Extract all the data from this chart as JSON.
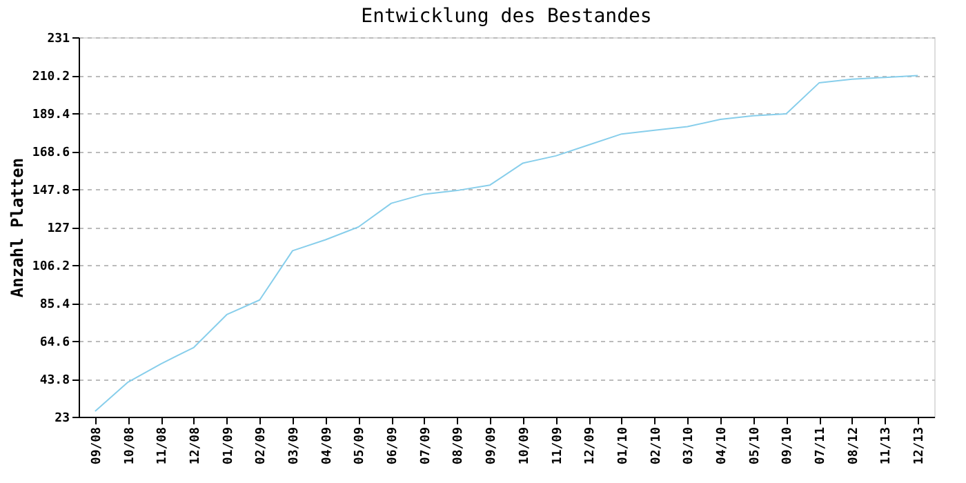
{
  "chart_data": {
    "type": "line",
    "title": "Entwicklung des Bestandes",
    "ylabel": "Anzahl Platten",
    "categories": [
      "09/08",
      "10/08",
      "11/08",
      "12/08",
      "01/09",
      "02/09",
      "03/09",
      "04/09",
      "05/09",
      "06/09",
      "07/09",
      "08/09",
      "09/09",
      "10/09",
      "11/09",
      "12/09",
      "01/10",
      "02/10",
      "03/10",
      "04/10",
      "05/10",
      "09/10",
      "07/11",
      "08/12",
      "11/13",
      "12/13"
    ],
    "series": [
      {
        "color": "#87ceeb",
        "values": [
          26,
          42,
          52,
          61,
          79,
          87,
          114,
          120,
          127,
          140,
          145,
          147,
          150,
          162,
          166,
          172,
          178,
          180,
          182,
          186,
          188,
          189,
          206,
          208,
          209,
          210
        ]
      }
    ],
    "ylim": [
      23,
      231
    ],
    "yticks": [
      23,
      43.8,
      64.6,
      85.4,
      106.2,
      127,
      147.8,
      168.6,
      189.4,
      210.2,
      231
    ],
    "grid": "y",
    "line_style": "solid",
    "marker": "none"
  }
}
